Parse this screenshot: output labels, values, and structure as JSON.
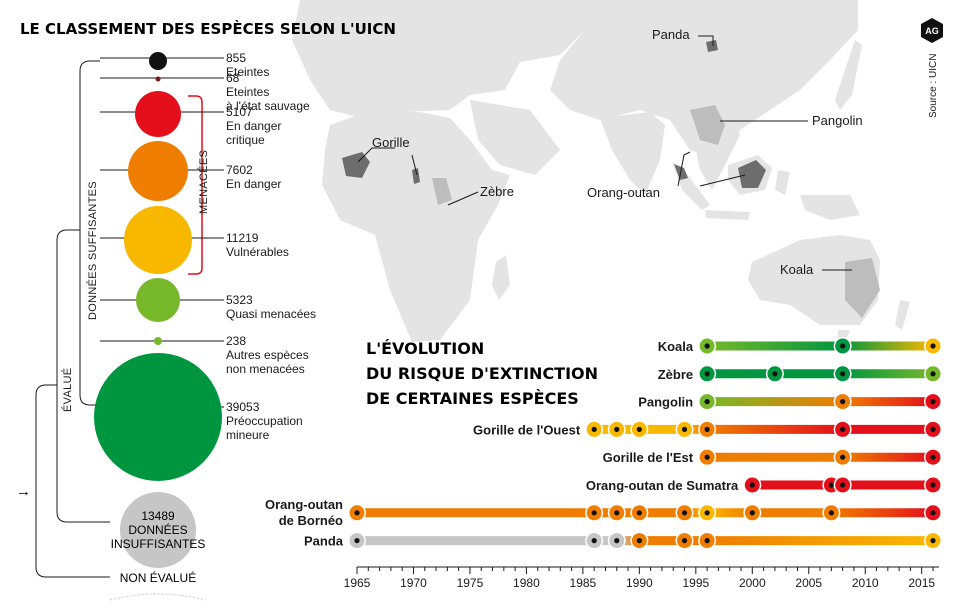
{
  "title": "LE CLASSEMENT DES ESPÈCES SELON L'UICN",
  "source": "Source : UICN",
  "logo": "AG",
  "colors": {
    "black": "#111111",
    "darkred": "#7a1a0c",
    "cr": "#e30f1b",
    "en": "#ef7d00",
    "vu": "#f9b800",
    "nt": "#76b82a",
    "lc": "#009640",
    "dd": "#c6c6c6",
    "ne": "#d9d9d9"
  },
  "labels": {
    "menacees": "MENACÉES",
    "donnees_suffisantes": "DONNÉES SUFFISANTES",
    "evalue": "ÉVALUÉ",
    "non_evalue": "NON ÉVALUÉ",
    "arrow": "→"
  },
  "categories": [
    {
      "count": "855",
      "label": [
        "Eteintes"
      ],
      "color": "black"
    },
    {
      "count": "68",
      "label": [
        "Eteintes",
        "à l'état sauvage"
      ],
      "color": "darkred"
    },
    {
      "count": "5107",
      "label": [
        "En danger",
        "critique"
      ],
      "color": "cr"
    },
    {
      "count": "7602",
      "label": [
        "En danger"
      ],
      "color": "en"
    },
    {
      "count": "11219",
      "label": [
        "Vulnérables"
      ],
      "color": "vu"
    },
    {
      "count": "5323",
      "label": [
        "Quasi menacées"
      ],
      "color": "nt"
    },
    {
      "count": "238",
      "label": [
        "Autres espèces",
        "non menacées"
      ],
      "color": "nt"
    },
    {
      "count": "39053",
      "label": [
        "Préoccupation",
        "mineure"
      ],
      "color": "lc"
    }
  ],
  "insufficient": {
    "count": "13489",
    "line1": "DONNÉES",
    "line2": "INSUFFISANTES"
  },
  "map_labels": [
    "Panda",
    "Gorille",
    "Zèbre",
    "Pangolin",
    "Orang-outan",
    "Koala"
  ],
  "chart_data": {
    "type": "line",
    "title": "L'ÉVOLUTION DU RISQUE D'EXTINCTION DE CERTAINES ESPÈCES",
    "title_lines": [
      "L'ÉVOLUTION",
      "DU RISQUE D'EXTINCTION",
      "DE CERTAINES ESPÈCES"
    ],
    "xlim": [
      1965,
      2016
    ],
    "x_ticks": [
      1965,
      1970,
      1975,
      1980,
      1985,
      1990,
      1995,
      2000,
      2005,
      2010,
      2015
    ],
    "status_colors": {
      "LC": "#009640",
      "NT": "#76b82a",
      "VU": "#f9b800",
      "EN": "#ef7d00",
      "CR": "#e30f1b",
      "DD": "#c6c6c6"
    },
    "series": [
      {
        "name": "Koala",
        "points": [
          [
            1996,
            "NT"
          ],
          [
            2008,
            "LC"
          ],
          [
            2016,
            "VU"
          ]
        ]
      },
      {
        "name": "Zèbre",
        "points": [
          [
            1996,
            "LC"
          ],
          [
            2002,
            "LC"
          ],
          [
            2008,
            "LC"
          ],
          [
            2016,
            "NT"
          ]
        ]
      },
      {
        "name": "Pangolin",
        "points": [
          [
            1996,
            "NT"
          ],
          [
            2008,
            "EN"
          ],
          [
            2016,
            "CR"
          ]
        ]
      },
      {
        "name": "Gorille de l'Ouest",
        "points": [
          [
            1986,
            "VU"
          ],
          [
            1988,
            "VU"
          ],
          [
            1990,
            "VU"
          ],
          [
            1994,
            "VU"
          ],
          [
            1996,
            "EN"
          ],
          [
            2008,
            "CR"
          ],
          [
            2016,
            "CR"
          ]
        ]
      },
      {
        "name": "Gorille de l'Est",
        "points": [
          [
            1996,
            "EN"
          ],
          [
            2008,
            "EN"
          ],
          [
            2016,
            "CR"
          ]
        ]
      },
      {
        "name": "Orang-outan de Sumatra",
        "points": [
          [
            2000,
            "CR"
          ],
          [
            2007,
            "CR"
          ],
          [
            2008,
            "CR"
          ],
          [
            2016,
            "CR"
          ]
        ]
      },
      {
        "name": "Orang-outan de Bornéo",
        "points": [
          [
            1965,
            "EN"
          ],
          [
            1986,
            "EN"
          ],
          [
            1988,
            "EN"
          ],
          [
            1990,
            "EN"
          ],
          [
            1994,
            "EN"
          ],
          [
            1996,
            "VU"
          ],
          [
            2000,
            "EN"
          ],
          [
            2007,
            "EN"
          ],
          [
            2016,
            "CR"
          ]
        ]
      },
      {
        "name": "Panda",
        "points": [
          [
            1965,
            "DD"
          ],
          [
            1986,
            "DD"
          ],
          [
            1988,
            "DD"
          ],
          [
            1990,
            "EN"
          ],
          [
            1994,
            "EN"
          ],
          [
            1996,
            "EN"
          ],
          [
            2016,
            "VU"
          ]
        ]
      }
    ]
  }
}
